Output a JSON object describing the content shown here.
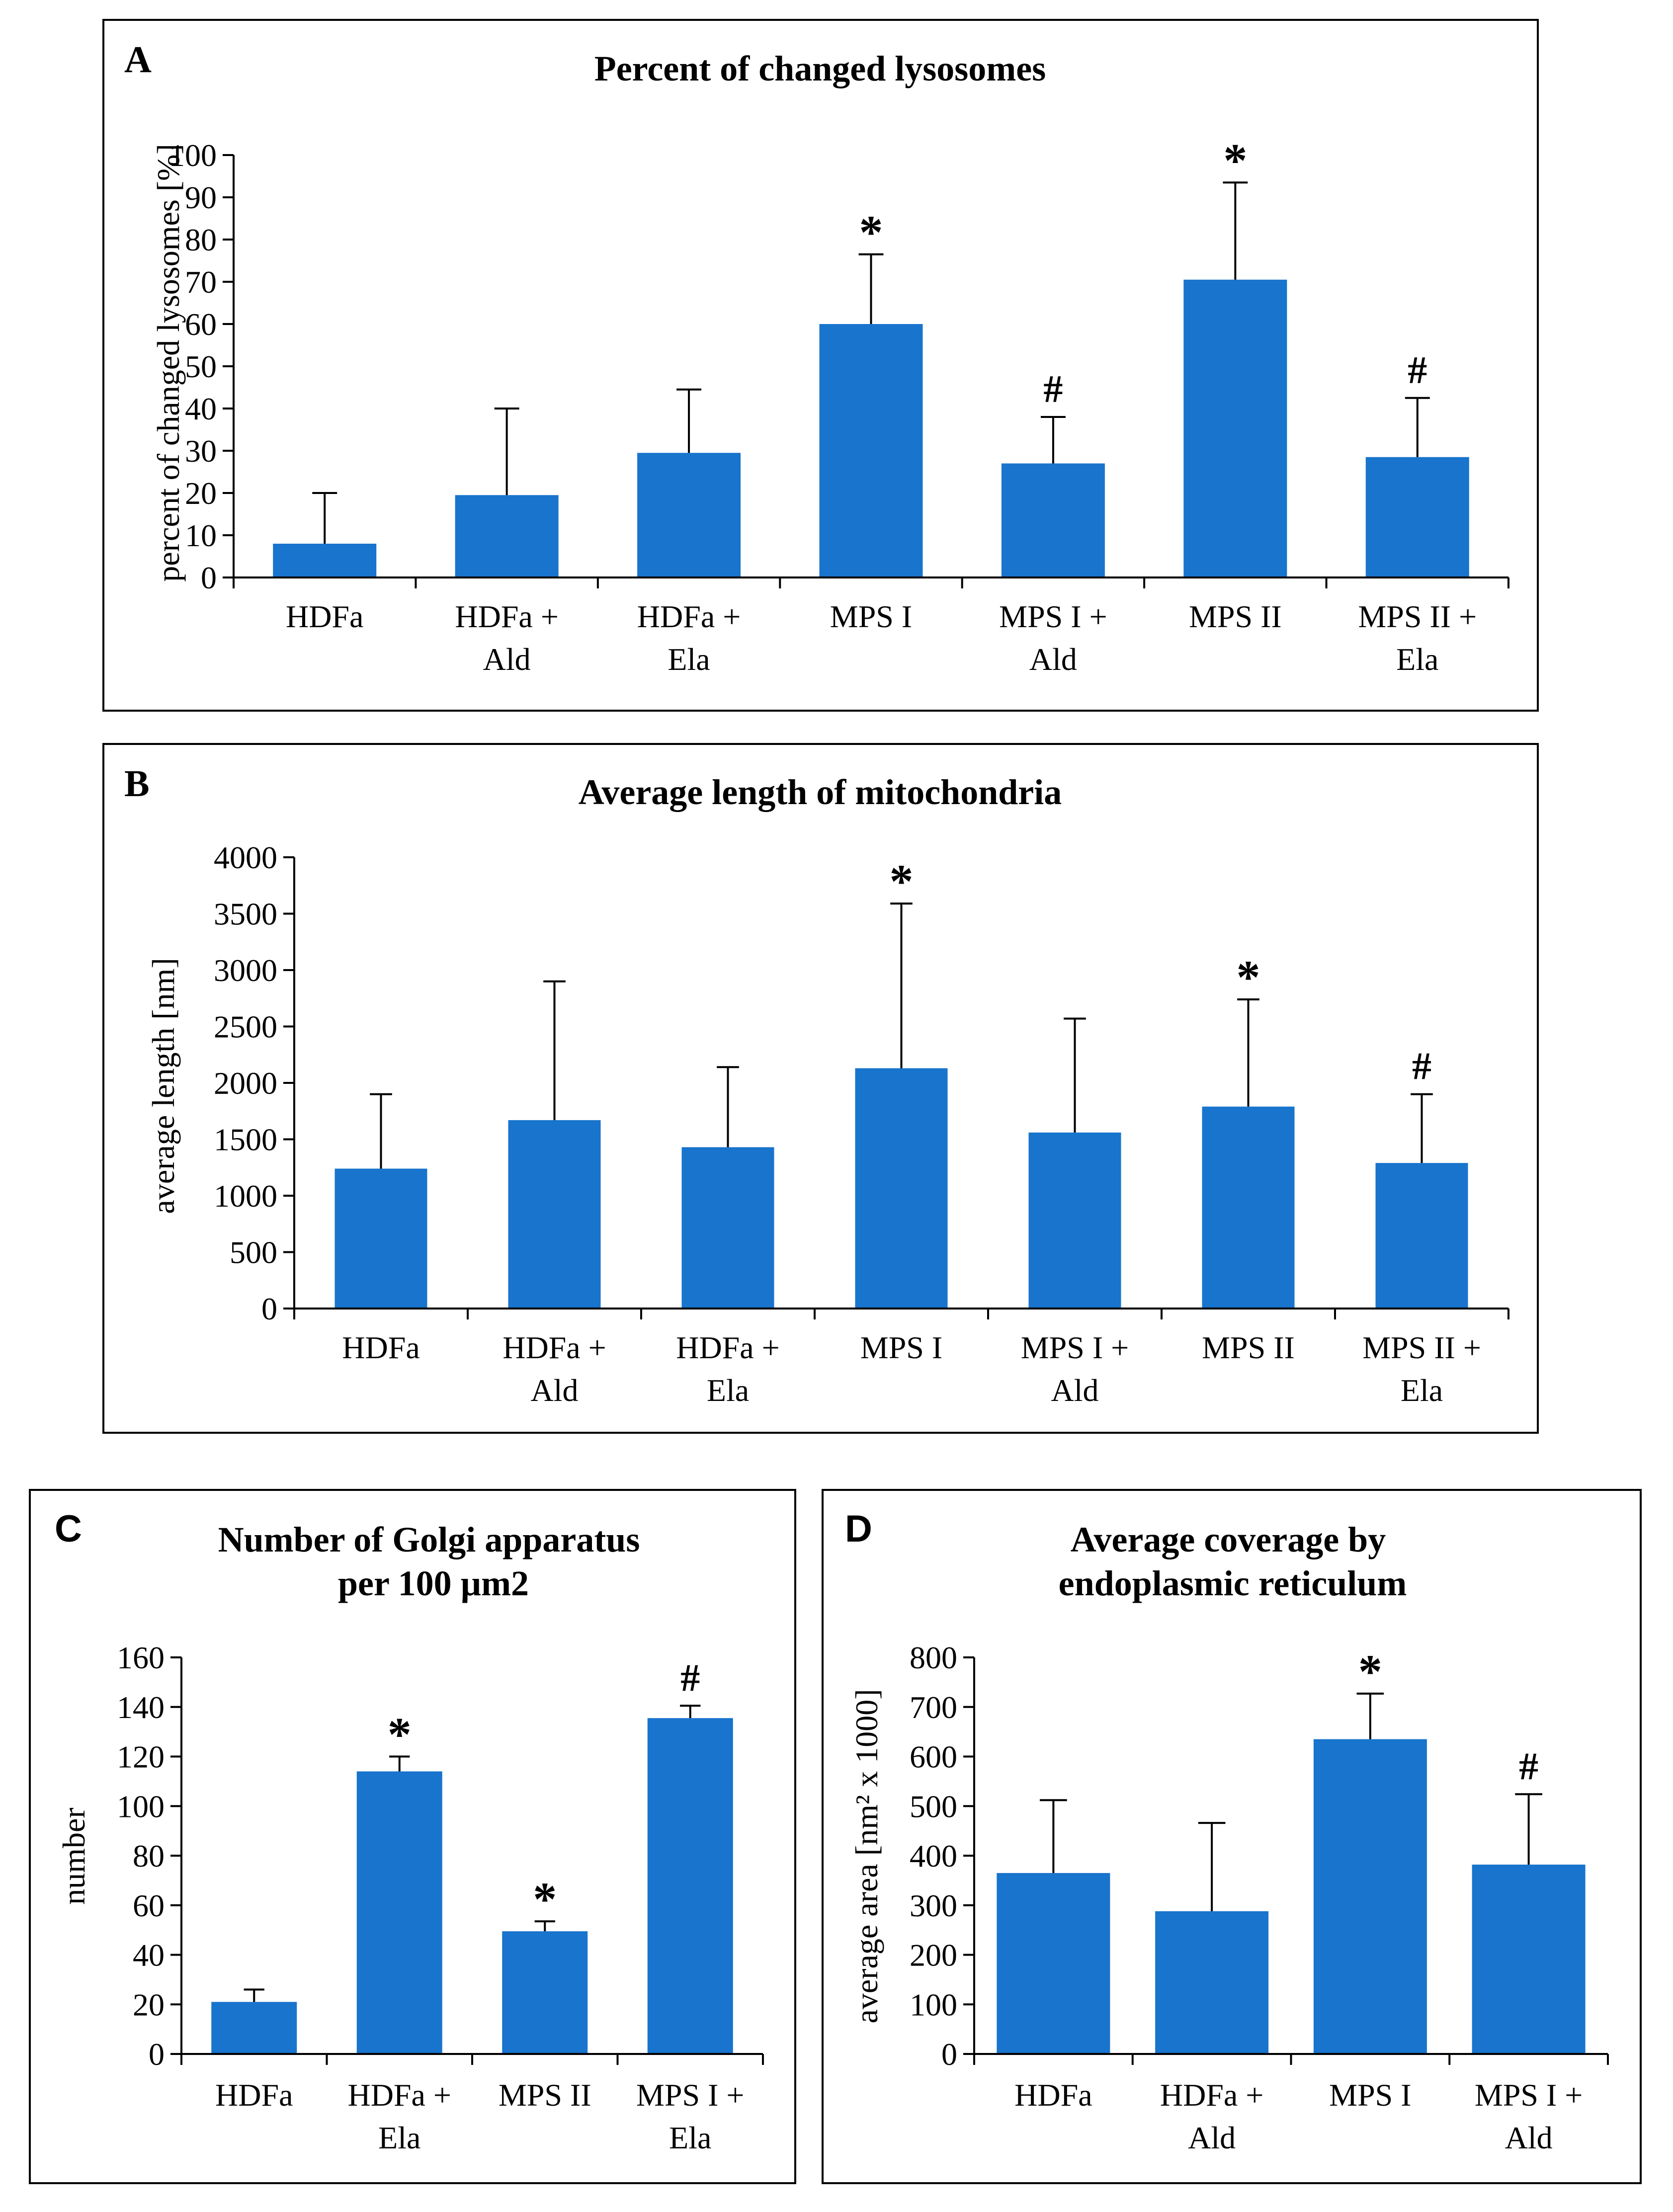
{
  "figure": {
    "colors": {
      "bar": "#1874CD",
      "axis": "#000000"
    }
  },
  "chart_data": [
    {
      "panel": "A",
      "type": "bar",
      "title": "Percent of changed lysosomes",
      "xlabel": "",
      "ylabel": "percent of changed lysosomes [%]",
      "ylim": [
        0,
        100
      ],
      "yticks": [
        0,
        10,
        20,
        30,
        40,
        50,
        60,
        70,
        80,
        90,
        100
      ],
      "categories": [
        [
          "HDFa"
        ],
        [
          "HDFa +",
          "Ald"
        ],
        [
          "HDFa +",
          "Ela"
        ],
        [
          "MPS I"
        ],
        [
          "MPS I +",
          "Ald"
        ],
        [
          "MPS II"
        ],
        [
          "MPS II +",
          "Ela"
        ]
      ],
      "values": [
        8,
        19.5,
        29.5,
        60,
        27,
        70.5,
        28.5
      ],
      "errors": [
        12,
        20.5,
        15,
        16.5,
        11,
        23,
        14
      ],
      "annotations": [
        "",
        "",
        "",
        "*",
        "#",
        "*",
        "#"
      ],
      "grid": false
    },
    {
      "panel": "B",
      "type": "bar",
      "title": "Average length of mitochondria",
      "xlabel": "",
      "ylabel": "average length [nm]",
      "ylim": [
        0,
        4000
      ],
      "yticks": [
        0,
        500,
        1000,
        1500,
        2000,
        2500,
        3000,
        3500,
        4000
      ],
      "categories": [
        [
          "HDFa"
        ],
        [
          "HDFa +",
          "Ald"
        ],
        [
          "HDFa +",
          "Ela"
        ],
        [
          "MPS I"
        ],
        [
          "MPS I +",
          "Ald"
        ],
        [
          "MPS II"
        ],
        [
          "MPS II +",
          "Ela"
        ]
      ],
      "values": [
        1240,
        1670,
        1430,
        2130,
        1560,
        1790,
        1290
      ],
      "errors": [
        660,
        1230,
        710,
        1460,
        1010,
        950,
        610
      ],
      "annotations": [
        "",
        "",
        "",
        "*",
        "",
        "*",
        "#"
      ],
      "grid": false
    },
    {
      "panel": "C",
      "type": "bar",
      "title": [
        "Number of Golgi apparatus",
        "per 100 µm2"
      ],
      "xlabel": "",
      "ylabel": "number",
      "ylim": [
        0,
        160
      ],
      "yticks": [
        0,
        20,
        40,
        60,
        80,
        100,
        120,
        140,
        160
      ],
      "categories": [
        [
          "HDFa"
        ],
        [
          "HDFa +",
          "Ela"
        ],
        [
          "MPS II"
        ],
        [
          "MPS I +",
          "Ela"
        ]
      ],
      "values": [
        21,
        114,
        49.5,
        135.5
      ],
      "errors": [
        5,
        6,
        4,
        5
      ],
      "annotations": [
        "",
        "*",
        "*",
        "#"
      ],
      "grid": false
    },
    {
      "panel": "D",
      "type": "bar",
      "title": [
        "Average coverage by",
        "endoplasmic reticulum"
      ],
      "xlabel": "",
      "ylabel": "average area [nm² x 1000]",
      "ylim": [
        0,
        800
      ],
      "yticks": [
        0,
        100,
        200,
        300,
        400,
        500,
        600,
        700,
        800
      ],
      "categories": [
        [
          "HDFa"
        ],
        [
          "HDFa +",
          "Ald"
        ],
        [
          "MPS I"
        ],
        [
          "MPS I +",
          "Ald"
        ]
      ],
      "values": [
        365,
        288,
        635,
        382
      ],
      "errors": [
        147,
        178,
        92,
        142
      ],
      "annotations": [
        "",
        "",
        "*",
        "#"
      ],
      "grid": false
    }
  ]
}
